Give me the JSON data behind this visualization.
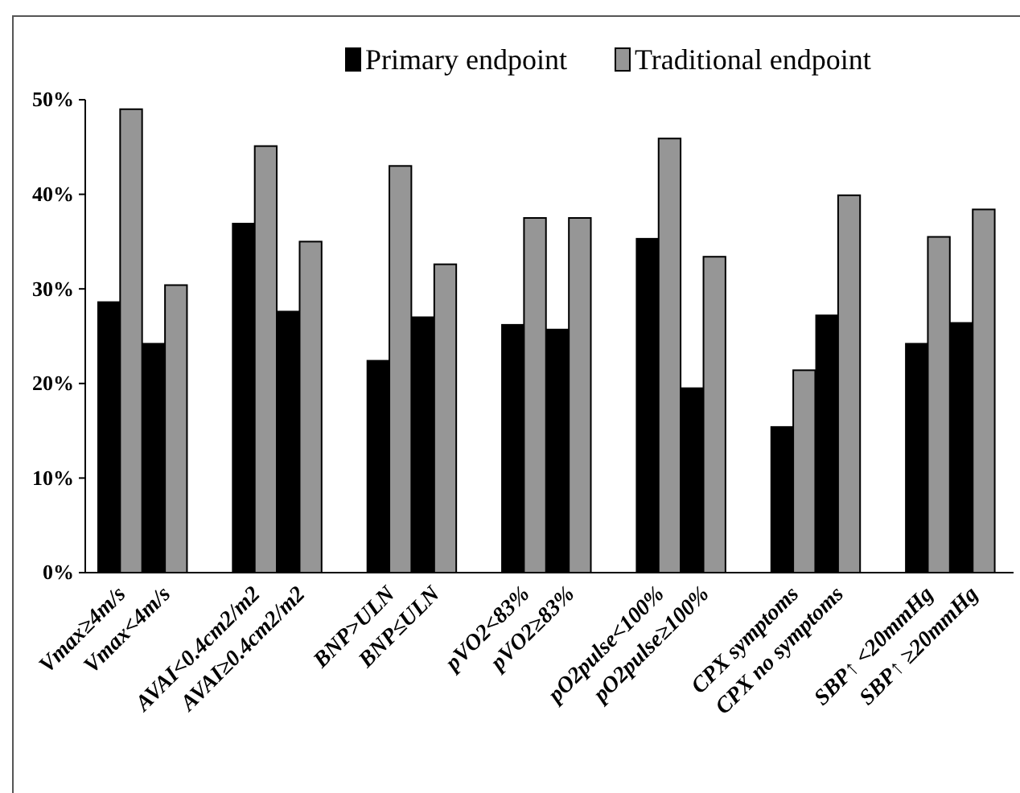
{
  "chart_data": {
    "type": "bar",
    "categories": [
      "Vmax≥4m/s",
      "Vmax<4m/s",
      "AVAI<0.4cm2/m2",
      "AVAI≥0.4cm2/m2",
      "BNP>ULN",
      "BNP≤ULN",
      "pVO2<83%",
      "pVO2≥83%",
      "pO2pulse<100%",
      "pO2pulse≥100%",
      "CPX symptoms",
      "CPX no symptoms",
      "SBP↑ <20mmHg",
      "SBP↑ ≥20mmHg"
    ],
    "series": [
      {
        "name": "Primary endpoint",
        "color": "#000000",
        "values": [
          28.6,
          24.2,
          36.9,
          27.6,
          22.4,
          27.0,
          26.2,
          25.7,
          35.3,
          19.5,
          15.4,
          27.2,
          24.2,
          26.4
        ]
      },
      {
        "name": "Traditional endpoint",
        "color": "#969696",
        "values": [
          49.0,
          30.4,
          45.1,
          35.0,
          43.0,
          32.6,
          37.5,
          37.5,
          45.9,
          33.4,
          21.4,
          39.9,
          35.5,
          38.4
        ]
      }
    ],
    "ylim": [
      0,
      50
    ],
    "yticks": [
      {
        "value": 0,
        "label": "0%"
      },
      {
        "value": 10,
        "label": "10%"
      },
      {
        "value": 20,
        "label": "20%"
      },
      {
        "value": 30,
        "label": "30%"
      },
      {
        "value": 40,
        "label": "40%"
      },
      {
        "value": 50,
        "label": "50%"
      }
    ],
    "grid": false,
    "legend": "top"
  }
}
